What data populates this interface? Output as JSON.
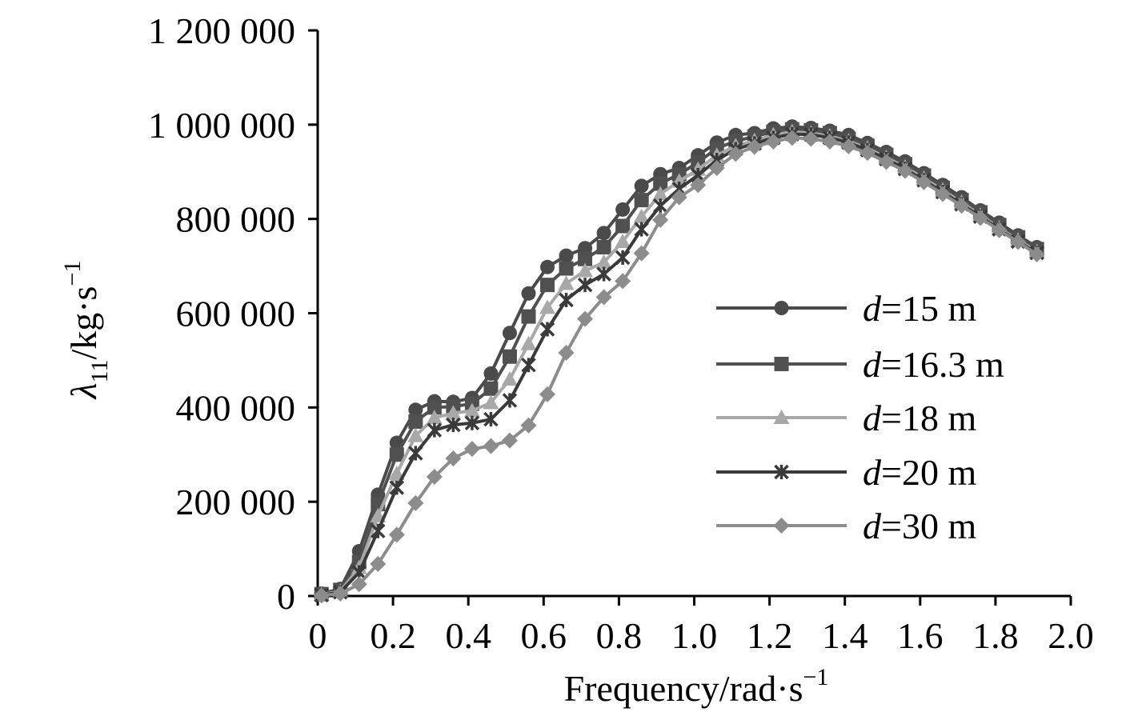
{
  "chart_data": {
    "type": "line",
    "title": "",
    "xlabel": "Frequency/rad·s",
    "xlabel_sup": "−1",
    "ylabel": {
      "symbol": "λ",
      "subscript": "11",
      "unit": "/kg·s",
      "sup": "−1"
    },
    "xlim": [
      0,
      2.0
    ],
    "ylim": [
      0,
      1200000
    ],
    "xticks": [
      "0",
      "0.2",
      "0.4",
      "0.6",
      "0.8",
      "1.0",
      "1.2",
      "1.4",
      "1.6",
      "1.8",
      "2.0"
    ],
    "yticks": [
      "0",
      "200 000",
      "400 000",
      "600 000",
      "800 000",
      "1 000 000",
      "1 200 000"
    ],
    "x": [
      0.01,
      0.06,
      0.11,
      0.16,
      0.21,
      0.26,
      0.31,
      0.36,
      0.41,
      0.46,
      0.51,
      0.56,
      0.61,
      0.66,
      0.71,
      0.76,
      0.81,
      0.86,
      0.91,
      0.96,
      1.01,
      1.06,
      1.11,
      1.16,
      1.21,
      1.26,
      1.31,
      1.36,
      1.41,
      1.46,
      1.51,
      1.56,
      1.61,
      1.66,
      1.71,
      1.76,
      1.81,
      1.86,
      1.91
    ],
    "legend_position": "right",
    "series": [
      {
        "name": "d=15 m",
        "legend_italic": "d",
        "legend_rest": "=15 m",
        "marker": "circle",
        "color": "#4a4a4a",
        "values": [
          5000,
          15000,
          95000,
          215000,
          325000,
          395000,
          413000,
          412000,
          420000,
          472000,
          558000,
          642000,
          698000,
          722000,
          738000,
          770000,
          820000,
          870000,
          895000,
          908000,
          935000,
          962000,
          978000,
          982000,
          992000,
          996000,
          993000,
          987000,
          978000,
          961000,
          942000,
          922000,
          897000,
          872000,
          846000,
          818000,
          792000,
          765000,
          740000
        ]
      },
      {
        "name": "d=16.3 m",
        "legend_italic": "d",
        "legend_rest": "=16.3 m",
        "marker": "square",
        "color": "#505050",
        "values": [
          4000,
          13000,
          72000,
          195000,
          300000,
          370000,
          400000,
          402000,
          408000,
          440000,
          508000,
          593000,
          660000,
          695000,
          715000,
          740000,
          785000,
          840000,
          875000,
          895000,
          920000,
          950000,
          965000,
          975000,
          985000,
          990000,
          988000,
          982000,
          970000,
          955000,
          936000,
          916000,
          892000,
          866000,
          840000,
          814000,
          787000,
          761000,
          736000
        ]
      },
      {
        "name": "d=18 m",
        "legend_italic": "d",
        "legend_rest": "=18 m",
        "marker": "triangle",
        "color": "#a8a8a8",
        "values": [
          3000,
          10000,
          60000,
          170000,
          260000,
          340000,
          378000,
          388000,
          393000,
          410000,
          460000,
          535000,
          612000,
          663000,
          690000,
          708000,
          752000,
          805000,
          853000,
          880000,
          905000,
          935000,
          955000,
          966000,
          978000,
          985000,
          982000,
          976000,
          965000,
          950000,
          930000,
          910000,
          886000,
          861000,
          835000,
          808000,
          781000,
          755000,
          731000
        ]
      },
      {
        "name": "d=20 m",
        "legend_italic": "d",
        "legend_rest": "=20 m",
        "marker": "star",
        "color": "#3a3a3a",
        "values": [
          2000,
          8000,
          50000,
          138000,
          230000,
          303000,
          352000,
          363000,
          367000,
          375000,
          415000,
          490000,
          566000,
          628000,
          660000,
          683000,
          718000,
          778000,
          828000,
          864000,
          893000,
          925000,
          948000,
          960000,
          972000,
          980000,
          979000,
          972000,
          962000,
          946000,
          927000,
          906000,
          882000,
          857000,
          831000,
          805000,
          778000,
          752000,
          728000
        ]
      },
      {
        "name": "d=30 m",
        "legend_italic": "d",
        "legend_rest": "=30 m",
        "marker": "diamond",
        "color": "#8c8c8c",
        "values": [
          1000,
          5000,
          25000,
          68000,
          130000,
          197000,
          253000,
          292000,
          312000,
          318000,
          330000,
          362000,
          428000,
          516000,
          588000,
          634000,
          668000,
          727000,
          798000,
          846000,
          872000,
          908000,
          938000,
          953000,
          964000,
          972000,
          970000,
          964000,
          954000,
          940000,
          921000,
          902000,
          878000,
          853000,
          828000,
          802000,
          776000,
          751000,
          725000
        ]
      }
    ]
  }
}
